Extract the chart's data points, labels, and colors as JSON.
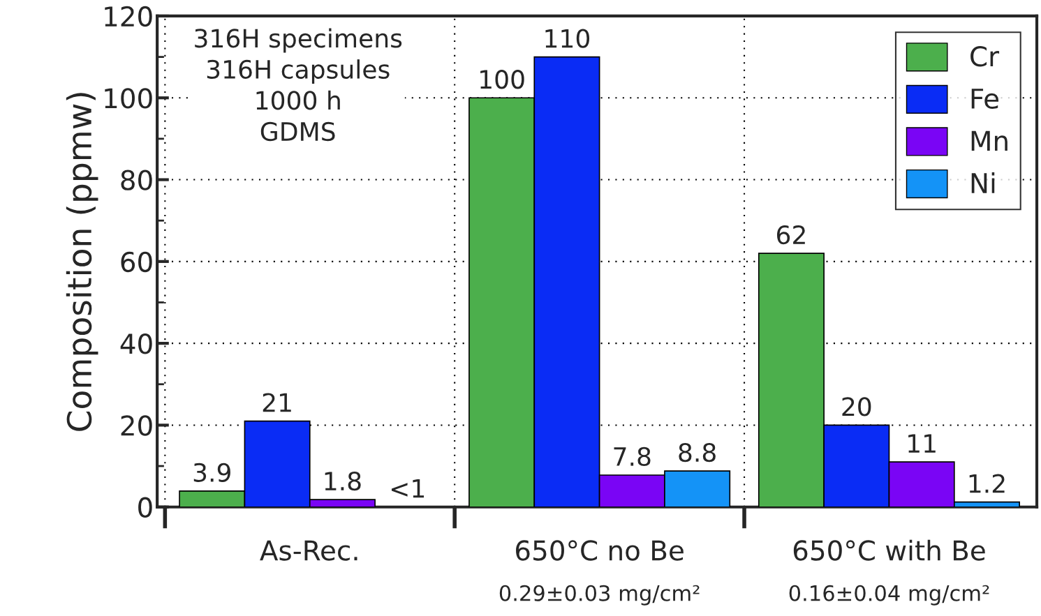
{
  "chart_data": {
    "type": "bar",
    "ylabel": "Composition (ppmw)",
    "categories": [
      "As-Rec.",
      "650°C no Be",
      "650°C with Be"
    ],
    "series": [
      {
        "name": "Cr",
        "color": "#4caf4c",
        "values": [
          3.9,
          100,
          62
        ],
        "value_labels": [
          "3.9",
          "100",
          "62"
        ]
      },
      {
        "name": "Fe",
        "color": "#0a2cf5",
        "values": [
          21,
          110,
          20
        ],
        "value_labels": [
          "21",
          "110",
          "20"
        ]
      },
      {
        "name": "Mn",
        "color": "#7a05f5",
        "values": [
          1.8,
          7.8,
          11
        ],
        "value_labels": [
          "1.8",
          "7.8",
          "11"
        ]
      },
      {
        "name": "Ni",
        "color": "#1493f7",
        "values": [
          null,
          8.8,
          1.2
        ],
        "value_labels": [
          "<1",
          "8.8",
          "1.2"
        ]
      }
    ],
    "ylim": [
      0,
      120
    ],
    "yticks": [
      0,
      20,
      40,
      60,
      80,
      100,
      120
    ],
    "grid": true,
    "legend": "top right",
    "annotations": [
      "316H specimens\n316H capsules\n1000 h\nGDMS",
      "0.29±0.03 mg/cm²",
      "0.16±0.04 mg/cm²"
    ]
  }
}
